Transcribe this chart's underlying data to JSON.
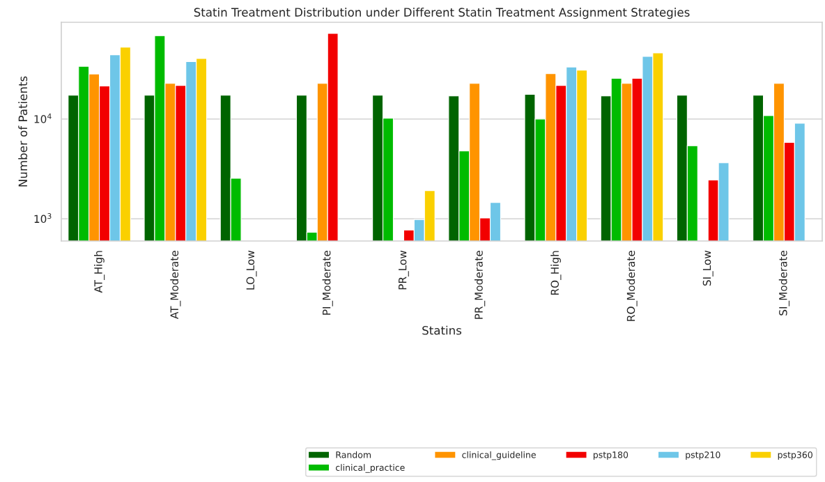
{
  "chart_data": {
    "type": "bar",
    "title": "Statin Treatment Distribution under Different Statin Treatment Assignment Strategies",
    "xlabel": "Statins",
    "ylabel": "Number of Patients",
    "categories": [
      "AT_High",
      "AT_Moderate",
      "LO_Low",
      "PI_Moderate",
      "PR_Low",
      "PR_Moderate",
      "RO_High",
      "RO_Moderate",
      "SI_Low",
      "SI_Moderate"
    ],
    "series": [
      {
        "name": "Random",
        "color": "#006400",
        "values": [
          17300,
          17300,
          17300,
          17300,
          17300,
          17000,
          17650,
          17000,
          17300,
          17300
        ]
      },
      {
        "name": "clinical_practice",
        "color": "#00bb00",
        "values": [
          33700,
          68200,
          2550,
          733,
          10200,
          4780,
          10000,
          25500,
          5390,
          10800
        ]
      },
      {
        "name": "clinical_guideline",
        "color": "#ff9400",
        "values": [
          28200,
          22700,
          null,
          22700,
          null,
          22700,
          28500,
          22700,
          null,
          22700
        ]
      },
      {
        "name": "pstp180",
        "color": "#f20000",
        "values": [
          21400,
          21700,
          null,
          71900,
          774,
          1020,
          21700,
          25500,
          2450,
          5830
        ]
      },
      {
        "name": "pstp210",
        "color": "#6ec6e8",
        "values": [
          44000,
          37500,
          null,
          null,
          985,
          1460,
          33100,
          42400,
          3640,
          9080
        ]
      },
      {
        "name": "pstp360",
        "color": "#fad000",
        "values": [
          52500,
          40400,
          null,
          null,
          1920,
          null,
          30900,
          45900,
          null,
          null
        ]
      }
    ],
    "log": "y",
    "ylim": [
      600,
      93000
    ],
    "yticks": [
      {
        "value": 1000,
        "label": "10$^{3}$"
      },
      {
        "value": 10000,
        "label": "10$^{4}$"
      }
    ],
    "grid": "y",
    "legend": "bottom right"
  }
}
